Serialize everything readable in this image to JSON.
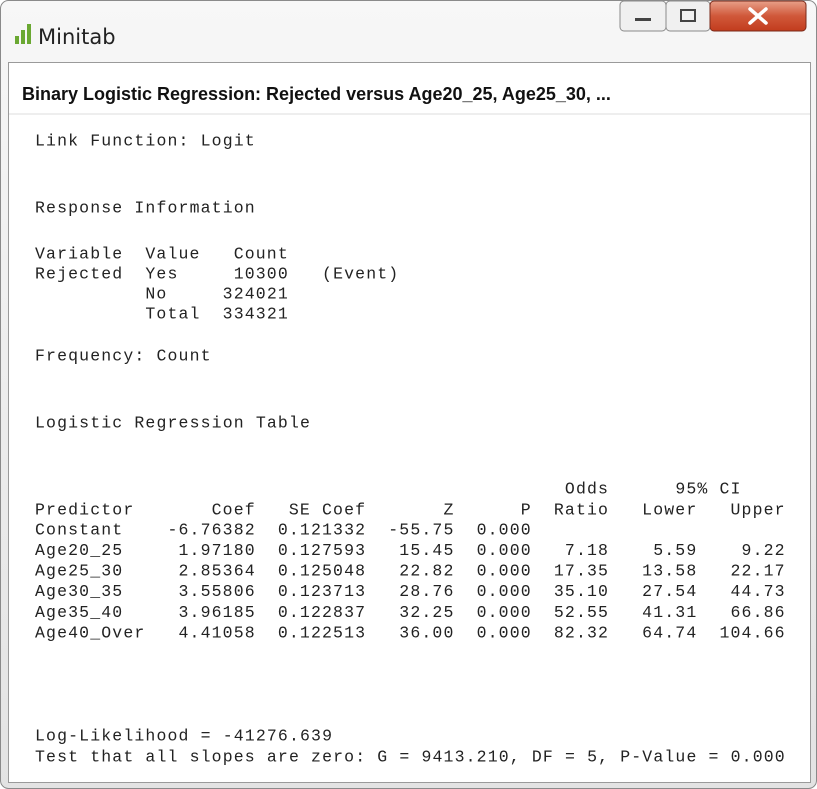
{
  "window": {
    "title": "Minitab"
  },
  "output": {
    "heading": "Binary Logistic Regression: Rejected versus Age20_25, Age25_30, ...",
    "link_function": "Link Function: Logit",
    "response_information": {
      "title": "Response Information",
      "columns": [
        "Variable",
        "Value",
        "Count"
      ],
      "rows": [
        {
          "variable": "Rejected",
          "value": "Yes",
          "count": "10300",
          "note": "(Event)"
        },
        {
          "value": "No",
          "count": "324021"
        },
        {
          "value": "Total",
          "count": "334321"
        }
      ]
    },
    "frequency": "Frequency: Count",
    "regression_table": {
      "title": "Logistic Regression Table",
      "header_top": [
        "Odds",
        "95% CI"
      ],
      "columns": [
        "Predictor",
        "Coef",
        "SE Coef",
        "Z",
        "P",
        "Ratio",
        "Lower",
        "Upper"
      ],
      "rows": [
        [
          "Constant",
          "-6.76382",
          "0.121332",
          "-55.75",
          "0.000"
        ],
        [
          "Age20_25",
          "1.97180",
          "0.127593",
          "15.45",
          "0.000",
          "7.18",
          "5.59",
          "9.22"
        ],
        [
          "Age25_30",
          "2.85364",
          "0.125048",
          "22.82",
          "0.000",
          "17.35",
          "13.58",
          "22.17"
        ],
        [
          "Age30_35",
          "3.55806",
          "0.123713",
          "28.76",
          "0.000",
          "35.10",
          "27.54",
          "44.73"
        ],
        [
          "Age35_40",
          "3.96185",
          "0.122837",
          "32.25",
          "0.000",
          "52.55",
          "41.31",
          "66.86"
        ],
        [
          "Age40_Over",
          "4.41058",
          "0.122513",
          "36.00",
          "0.000",
          "82.32",
          "64.74",
          "104.66"
        ]
      ]
    },
    "log_likelihood": "Log-Likelihood = -41276.639",
    "test": "Test that all slopes are zero: G = 9413.210, DF = 5, P-Value = 0.000"
  }
}
